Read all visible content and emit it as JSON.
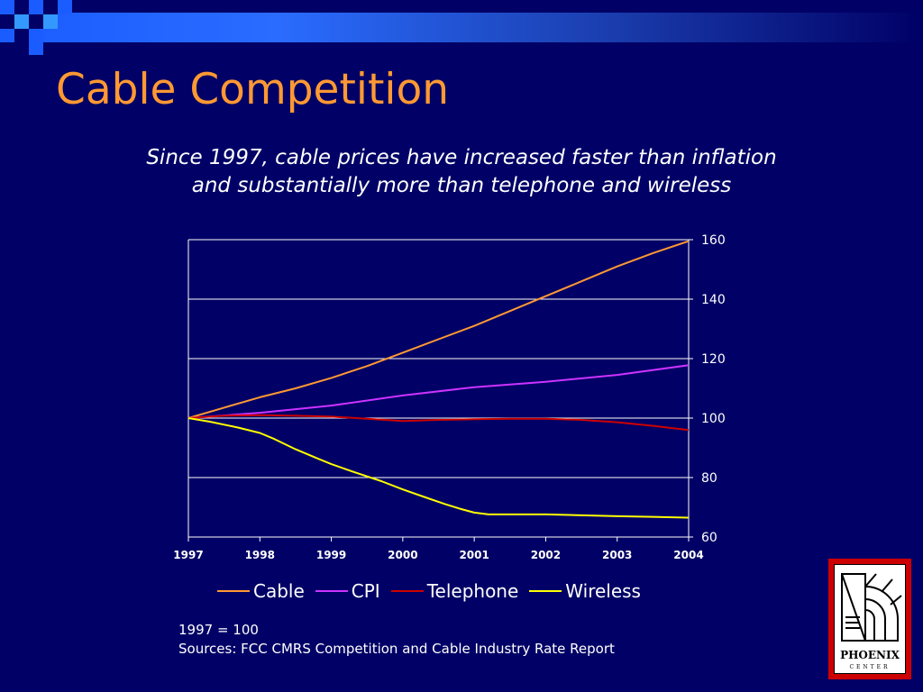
{
  "slide": {
    "title": "Cable Competition",
    "subtitle_line1": "Since 1997, cable prices have increased faster than inflation",
    "subtitle_line2": "and substantially more than telephone and wireless",
    "footnote_line1": "1997 = 100",
    "footnote_line2": "Sources:  FCC CMRS Competition and Cable Industry Rate Report"
  },
  "logo": {
    "name": "PHOENIX",
    "sub": "CENTER",
    "icon": "phoenix-center-logo-icon"
  },
  "colors": {
    "background": "#000066",
    "title": "#ff9933",
    "text": "#ffffff",
    "gridline": "#ffffff",
    "logo_border": "#cc0000"
  },
  "chart_data": {
    "type": "line",
    "title": "",
    "xlabel": "",
    "ylabel": "",
    "xlim": [
      1997,
      2004
    ],
    "ylim": [
      60,
      160
    ],
    "x_ticks": [
      1997,
      1998,
      1999,
      2000,
      2001,
      2002,
      2003,
      2004
    ],
    "y_ticks": [
      60,
      80,
      100,
      120,
      140,
      160
    ],
    "y_axis_side": "right",
    "grid": true,
    "legend_position": "bottom",
    "series": [
      {
        "name": "Cable",
        "color": "#ff9933",
        "x": [
          1997,
          1997.5,
          1998,
          1998.5,
          1999,
          1999.5,
          2000,
          2000.5,
          2001,
          2001.5,
          2002,
          2002.5,
          2003,
          2003.5,
          2004
        ],
        "y": [
          100,
          103.5,
          107,
          110,
          113.5,
          117.5,
          122,
          126.5,
          131,
          136,
          141,
          146,
          151,
          155.5,
          159.5
        ]
      },
      {
        "name": "CPI",
        "color": "#cc33ff",
        "x": [
          1997,
          1998,
          1999,
          2000,
          2001,
          2002,
          2003,
          2004
        ],
        "y": [
          100,
          101.8,
          104.2,
          107.6,
          110.4,
          112.2,
          114.5,
          117.8
        ]
      },
      {
        "name": "Telephone",
        "color": "#cc0000",
        "x": [
          1997,
          1997.5,
          1998,
          1998.5,
          1999,
          1999.5,
          2000,
          2000.5,
          2001,
          2001.5,
          2002,
          2002.5,
          2003,
          2003.5,
          2004
        ],
        "y": [
          100,
          100.8,
          101,
          100.8,
          100.5,
          99.8,
          99,
          99.4,
          99.6,
          99.8,
          99.8,
          99.4,
          98.6,
          97.4,
          96
        ]
      },
      {
        "name": "Wireless",
        "color": "#ffff00",
        "x": [
          1997,
          1997.3,
          1997.7,
          1998,
          1998.2,
          1998.5,
          1998.8,
          1999,
          1999.3,
          1999.7,
          2000,
          2000.3,
          2000.6,
          2000.8,
          2001,
          2001.2,
          2001.5,
          2002,
          2002.5,
          2003,
          2003.5,
          2004
        ],
        "y": [
          100,
          98.8,
          96.8,
          95,
          93,
          89.5,
          86.5,
          84.5,
          82,
          78.8,
          76,
          73.5,
          71,
          69.5,
          68.2,
          67.6,
          67.6,
          67.6,
          67.3,
          67,
          66.8,
          66.5
        ]
      }
    ]
  }
}
